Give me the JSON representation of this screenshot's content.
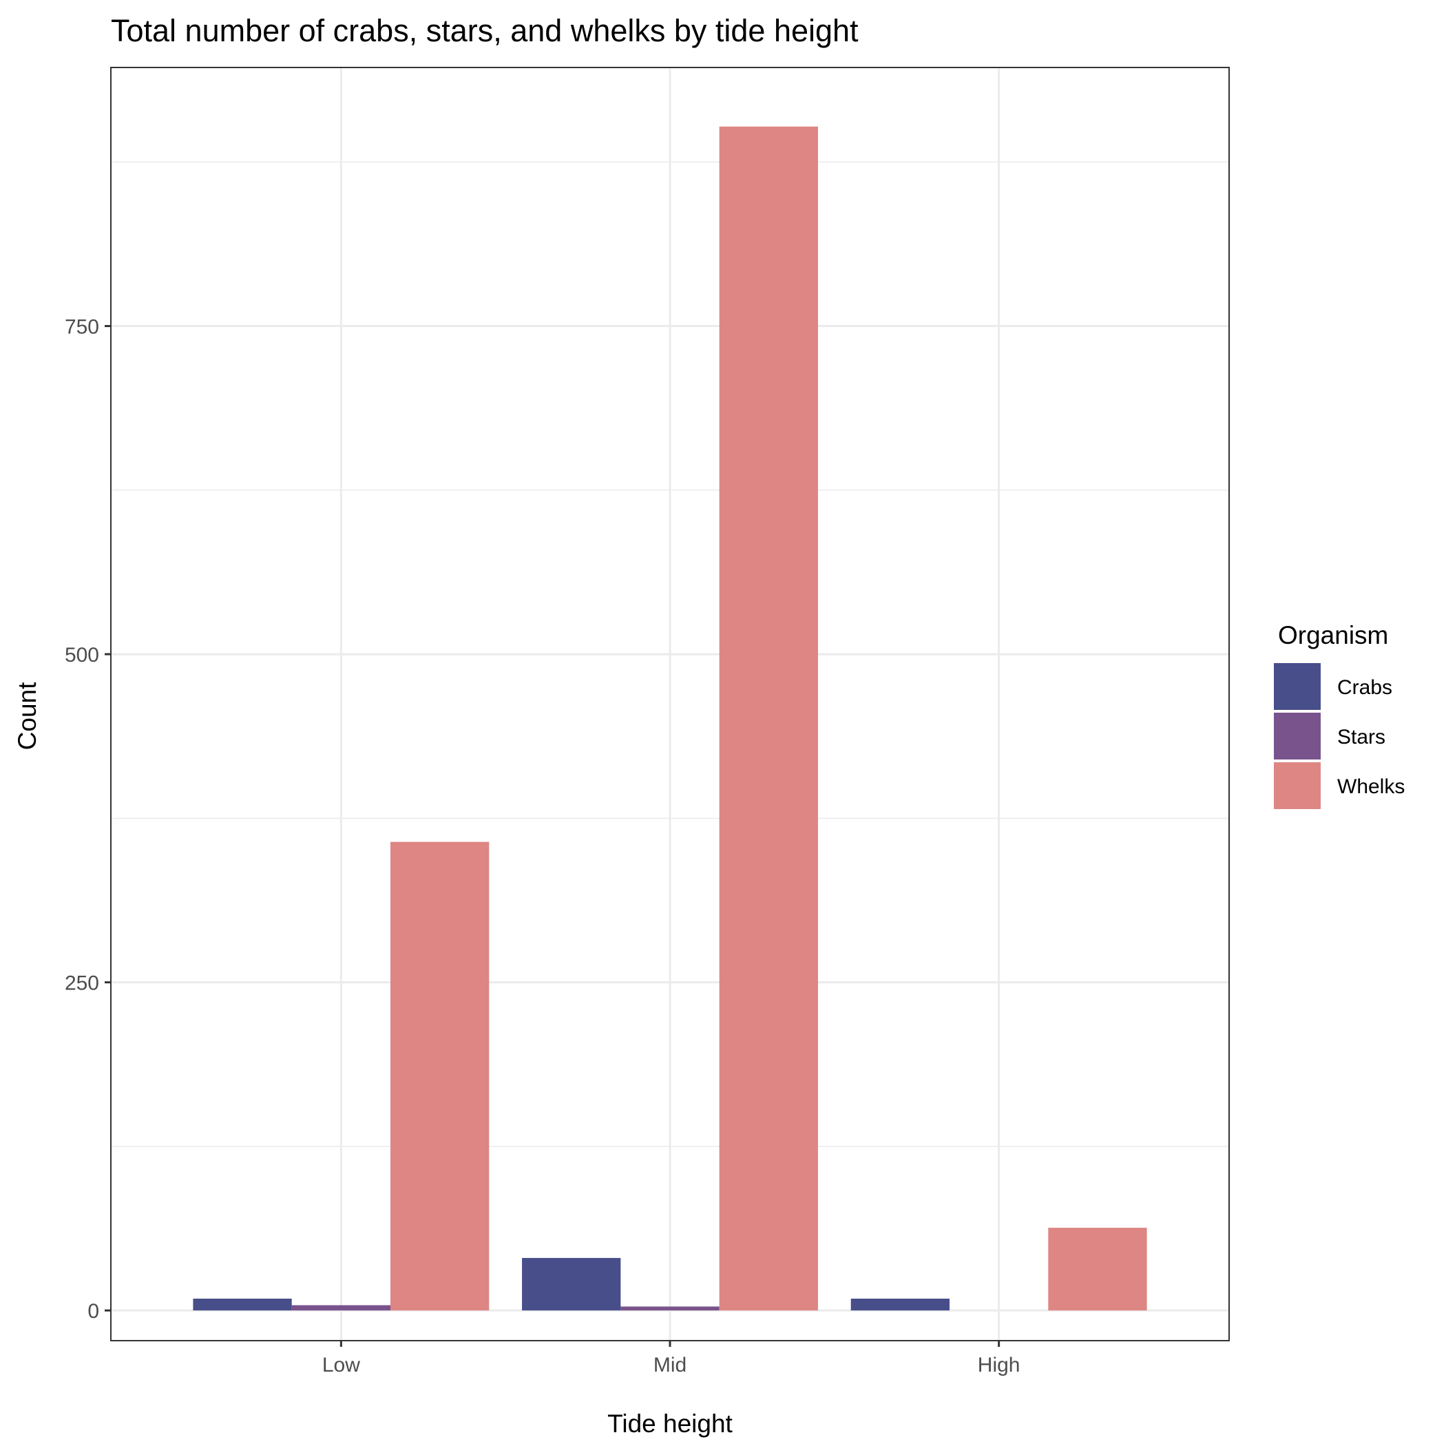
{
  "chart_data": {
    "type": "bar",
    "title": "Total number of crabs, stars, and whelks by tide height",
    "xlabel": "Tide height",
    "ylabel": "Count",
    "categories": [
      "Low",
      "Mid",
      "High"
    ],
    "series": [
      {
        "name": "Crabs",
        "color": "#474E8A",
        "values": [
          9,
          40,
          9
        ]
      },
      {
        "name": "Stars",
        "color": "#79538C",
        "values": [
          4,
          3,
          0
        ]
      },
      {
        "name": "Whelks",
        "color": "#DD8684",
        "values": [
          357,
          902,
          63
        ]
      }
    ],
    "yticks": [
      0,
      250,
      500,
      750
    ],
    "ylim": [
      -23,
      947
    ],
    "grid": true,
    "legend_title": "Organism",
    "legend_position": "right"
  }
}
